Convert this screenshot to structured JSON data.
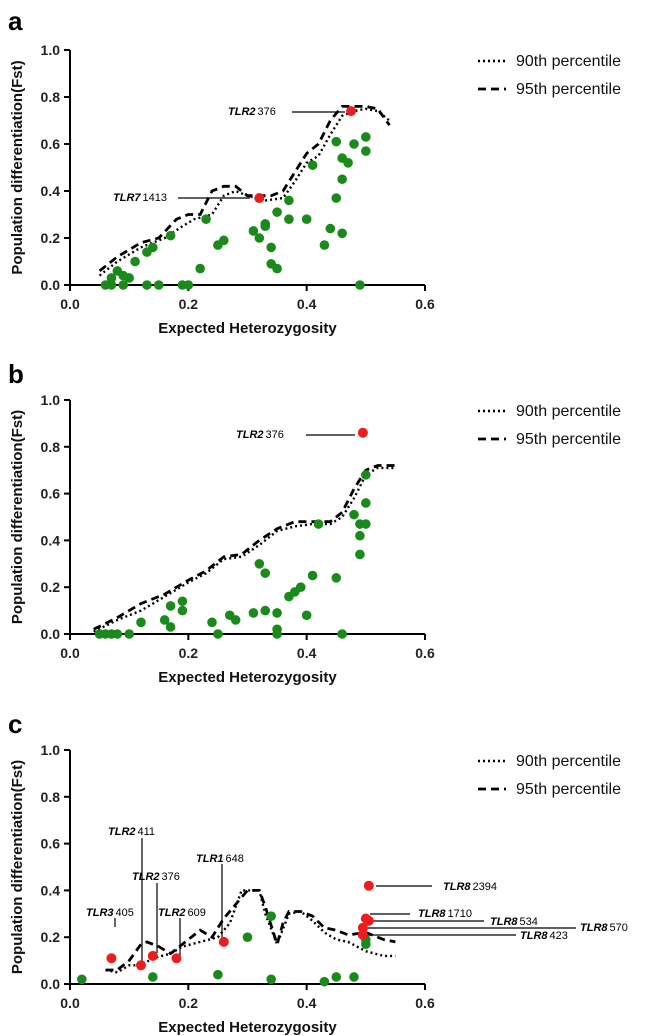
{
  "chart_data": [
    {
      "type": "scatter",
      "panel": "a",
      "xlabel": "Expected Heterozygosity",
      "ylabel": "Population differentiation(Fst)",
      "xlim": [
        0.0,
        0.6
      ],
      "ylim": [
        0.0,
        1.0
      ],
      "xticks": [
        "0.0",
        "0.2",
        "0.4",
        "0.6"
      ],
      "yticks": [
        "0.0",
        "0.2",
        "0.4",
        "0.6",
        "0.8",
        "1.0"
      ],
      "legend": {
        "position": "top-right",
        "entries": [
          {
            "label": "90th percentile",
            "style": "dotted"
          },
          {
            "label": "95th percentile",
            "style": "dashed"
          }
        ]
      },
      "colors": {
        "neutral": "#1a8a1a",
        "outlier": "#ee1c1c"
      },
      "lines": {
        "p90": [
          [
            0.05,
            0.04
          ],
          [
            0.08,
            0.1
          ],
          [
            0.12,
            0.16
          ],
          [
            0.16,
            0.2
          ],
          [
            0.19,
            0.25
          ],
          [
            0.21,
            0.28
          ],
          [
            0.24,
            0.3
          ],
          [
            0.26,
            0.38
          ],
          [
            0.28,
            0.4
          ],
          [
            0.3,
            0.38
          ],
          [
            0.33,
            0.36
          ],
          [
            0.36,
            0.37
          ],
          [
            0.38,
            0.44
          ],
          [
            0.4,
            0.52
          ],
          [
            0.42,
            0.55
          ],
          [
            0.44,
            0.64
          ],
          [
            0.46,
            0.72
          ],
          [
            0.48,
            0.74
          ],
          [
            0.5,
            0.75
          ],
          [
            0.52,
            0.74
          ],
          [
            0.54,
            0.7
          ]
        ],
        "p95": [
          [
            0.05,
            0.06
          ],
          [
            0.08,
            0.12
          ],
          [
            0.12,
            0.18
          ],
          [
            0.15,
            0.2
          ],
          [
            0.18,
            0.28
          ],
          [
            0.2,
            0.3
          ],
          [
            0.22,
            0.3
          ],
          [
            0.24,
            0.4
          ],
          [
            0.26,
            0.42
          ],
          [
            0.28,
            0.42
          ],
          [
            0.3,
            0.38
          ],
          [
            0.34,
            0.38
          ],
          [
            0.36,
            0.4
          ],
          [
            0.38,
            0.48
          ],
          [
            0.4,
            0.56
          ],
          [
            0.42,
            0.6
          ],
          [
            0.44,
            0.7
          ],
          [
            0.46,
            0.76
          ],
          [
            0.48,
            0.76
          ],
          [
            0.5,
            0.76
          ],
          [
            0.52,
            0.75
          ],
          [
            0.54,
            0.68
          ]
        ]
      },
      "neutral": [
        [
          0.06,
          0.0
        ],
        [
          0.07,
          0.03
        ],
        [
          0.07,
          0.0
        ],
        [
          0.08,
          0.06
        ],
        [
          0.09,
          0.0
        ],
        [
          0.09,
          0.04
        ],
        [
          0.1,
          0.03
        ],
        [
          0.11,
          0.1
        ],
        [
          0.13,
          0.14
        ],
        [
          0.13,
          0.0
        ],
        [
          0.14,
          0.16
        ],
        [
          0.15,
          0.0
        ],
        [
          0.17,
          0.21
        ],
        [
          0.19,
          0.0
        ],
        [
          0.2,
          0.0
        ],
        [
          0.22,
          0.07
        ],
        [
          0.23,
          0.28
        ],
        [
          0.25,
          0.17
        ],
        [
          0.26,
          0.19
        ],
        [
          0.31,
          0.23
        ],
        [
          0.32,
          0.2
        ],
        [
          0.33,
          0.26
        ],
        [
          0.33,
          0.25
        ],
        [
          0.34,
          0.16
        ],
        [
          0.34,
          0.09
        ],
        [
          0.35,
          0.07
        ],
        [
          0.35,
          0.31
        ],
        [
          0.37,
          0.28
        ],
        [
          0.37,
          0.36
        ],
        [
          0.4,
          0.28
        ],
        [
          0.41,
          0.51
        ],
        [
          0.43,
          0.17
        ],
        [
          0.44,
          0.24
        ],
        [
          0.45,
          0.37
        ],
        [
          0.45,
          0.61
        ],
        [
          0.46,
          0.45
        ],
        [
          0.46,
          0.54
        ],
        [
          0.46,
          0.22
        ],
        [
          0.47,
          0.52
        ],
        [
          0.48,
          0.6
        ],
        [
          0.49,
          0.0
        ],
        [
          0.5,
          0.63
        ],
        [
          0.5,
          0.57
        ]
      ],
      "outliers": [
        {
          "x": 0.32,
          "y": 0.37,
          "gene": "TLR7",
          "pos": "1413"
        },
        {
          "x": 0.475,
          "y": 0.74,
          "gene": "TLR2",
          "pos": "376"
        }
      ]
    },
    {
      "type": "scatter",
      "panel": "b",
      "xlabel": "Expected Heterozygosity",
      "ylabel": "Population differentiation(Fst)",
      "xlim": [
        0.0,
        0.6
      ],
      "ylim": [
        0.0,
        1.0
      ],
      "xticks": [
        "0.0",
        "0.2",
        "0.4",
        "0.6"
      ],
      "yticks": [
        "0.0",
        "0.2",
        "0.4",
        "0.6",
        "0.8",
        "1.0"
      ],
      "legend": {
        "position": "top-right",
        "entries": [
          {
            "label": "90th percentile",
            "style": "dotted"
          },
          {
            "label": "95th percentile",
            "style": "dashed"
          }
        ]
      },
      "colors": {
        "neutral": "#1a8a1a",
        "outlier": "#ee1c1c"
      },
      "lines": {
        "p90": [
          [
            0.04,
            0.01
          ],
          [
            0.08,
            0.06
          ],
          [
            0.12,
            0.1
          ],
          [
            0.16,
            0.16
          ],
          [
            0.2,
            0.22
          ],
          [
            0.23,
            0.26
          ],
          [
            0.26,
            0.32
          ],
          [
            0.29,
            0.33
          ],
          [
            0.32,
            0.38
          ],
          [
            0.35,
            0.44
          ],
          [
            0.38,
            0.46
          ],
          [
            0.41,
            0.47
          ],
          [
            0.44,
            0.47
          ],
          [
            0.46,
            0.5
          ],
          [
            0.48,
            0.58
          ],
          [
            0.5,
            0.68
          ],
          [
            0.52,
            0.71
          ],
          [
            0.55,
            0.71
          ]
        ],
        "p95": [
          [
            0.04,
            0.02
          ],
          [
            0.08,
            0.07
          ],
          [
            0.12,
            0.13
          ],
          [
            0.16,
            0.17
          ],
          [
            0.2,
            0.23
          ],
          [
            0.23,
            0.27
          ],
          [
            0.26,
            0.33
          ],
          [
            0.29,
            0.34
          ],
          [
            0.32,
            0.4
          ],
          [
            0.35,
            0.45
          ],
          [
            0.38,
            0.48
          ],
          [
            0.41,
            0.48
          ],
          [
            0.44,
            0.48
          ],
          [
            0.46,
            0.52
          ],
          [
            0.48,
            0.62
          ],
          [
            0.5,
            0.7
          ],
          [
            0.52,
            0.72
          ],
          [
            0.55,
            0.72
          ]
        ]
      },
      "neutral": [
        [
          0.05,
          0.0
        ],
        [
          0.06,
          0.0
        ],
        [
          0.07,
          0.0
        ],
        [
          0.08,
          0.0
        ],
        [
          0.1,
          0.0
        ],
        [
          0.12,
          0.05
        ],
        [
          0.16,
          0.06
        ],
        [
          0.17,
          0.12
        ],
        [
          0.17,
          0.03
        ],
        [
          0.19,
          0.1
        ],
        [
          0.19,
          0.14
        ],
        [
          0.24,
          0.05
        ],
        [
          0.25,
          0.0
        ],
        [
          0.27,
          0.08
        ],
        [
          0.28,
          0.06
        ],
        [
          0.31,
          0.09
        ],
        [
          0.32,
          0.3
        ],
        [
          0.33,
          0.26
        ],
        [
          0.33,
          0.1
        ],
        [
          0.35,
          0.02
        ],
        [
          0.35,
          0.0
        ],
        [
          0.35,
          0.09
        ],
        [
          0.37,
          0.16
        ],
        [
          0.38,
          0.18
        ],
        [
          0.39,
          0.2
        ],
        [
          0.4,
          0.08
        ],
        [
          0.41,
          0.25
        ],
        [
          0.42,
          0.47
        ],
        [
          0.45,
          0.24
        ],
        [
          0.46,
          0.0
        ],
        [
          0.48,
          0.51
        ],
        [
          0.49,
          0.47
        ],
        [
          0.49,
          0.34
        ],
        [
          0.49,
          0.42
        ],
        [
          0.5,
          0.47
        ],
        [
          0.5,
          0.56
        ],
        [
          0.5,
          0.68
        ]
      ],
      "outliers": [
        {
          "x": 0.495,
          "y": 0.86,
          "gene": "TLR2",
          "pos": "376"
        }
      ]
    },
    {
      "type": "scatter",
      "panel": "c",
      "xlabel": "Expected Heterozygosity",
      "ylabel": "Population differentiation(Fst)",
      "xlim": [
        0.0,
        0.6
      ],
      "ylim": [
        0.0,
        1.0
      ],
      "xticks": [
        "0.0",
        "0.2",
        "0.4",
        "0.6"
      ],
      "yticks": [
        "0.0",
        "0.2",
        "0.4",
        "0.6",
        "0.8",
        "1.0"
      ],
      "legend": {
        "position": "top-right",
        "entries": [
          {
            "label": "90th percentile",
            "style": "dotted"
          },
          {
            "label": "95th percentile",
            "style": "dashed"
          }
        ]
      },
      "colors": {
        "neutral": "#1a8a1a",
        "outlier": "#ee1c1c"
      },
      "lines": {
        "p90": [
          [
            0.06,
            0.06
          ],
          [
            0.08,
            0.05
          ],
          [
            0.1,
            0.08
          ],
          [
            0.12,
            0.08
          ],
          [
            0.14,
            0.11
          ],
          [
            0.17,
            0.13
          ],
          [
            0.19,
            0.16
          ],
          [
            0.22,
            0.18
          ],
          [
            0.25,
            0.2
          ],
          [
            0.27,
            0.26
          ],
          [
            0.29,
            0.4
          ],
          [
            0.32,
            0.4
          ],
          [
            0.33,
            0.3
          ],
          [
            0.35,
            0.17
          ],
          [
            0.37,
            0.3
          ],
          [
            0.39,
            0.31
          ],
          [
            0.41,
            0.27
          ],
          [
            0.43,
            0.22
          ],
          [
            0.45,
            0.19
          ],
          [
            0.47,
            0.18
          ],
          [
            0.5,
            0.14
          ],
          [
            0.53,
            0.12
          ],
          [
            0.55,
            0.12
          ]
        ],
        "p95": [
          [
            0.06,
            0.06
          ],
          [
            0.08,
            0.06
          ],
          [
            0.1,
            0.1
          ],
          [
            0.12,
            0.17
          ],
          [
            0.13,
            0.18
          ],
          [
            0.15,
            0.16
          ],
          [
            0.17,
            0.13
          ],
          [
            0.19,
            0.17
          ],
          [
            0.22,
            0.23
          ],
          [
            0.24,
            0.2
          ],
          [
            0.26,
            0.28
          ],
          [
            0.28,
            0.34
          ],
          [
            0.3,
            0.4
          ],
          [
            0.32,
            0.4
          ],
          [
            0.33,
            0.33
          ],
          [
            0.35,
            0.17
          ],
          [
            0.36,
            0.26
          ],
          [
            0.37,
            0.31
          ],
          [
            0.39,
            0.31
          ],
          [
            0.41,
            0.29
          ],
          [
            0.43,
            0.24
          ],
          [
            0.45,
            0.23
          ],
          [
            0.47,
            0.21
          ],
          [
            0.5,
            0.22
          ],
          [
            0.53,
            0.19
          ],
          [
            0.55,
            0.18
          ]
        ]
      },
      "neutral": [
        [
          0.02,
          0.02
        ],
        [
          0.14,
          0.03
        ],
        [
          0.25,
          0.04
        ],
        [
          0.3,
          0.2
        ],
        [
          0.34,
          0.29
        ],
        [
          0.34,
          0.02
        ],
        [
          0.43,
          0.01
        ],
        [
          0.45,
          0.03
        ],
        [
          0.48,
          0.03
        ],
        [
          0.5,
          0.17
        ],
        [
          0.5,
          0.19
        ]
      ],
      "outliers": [
        {
          "x": 0.07,
          "y": 0.11,
          "gene": "TLR3",
          "pos": "405"
        },
        {
          "x": 0.12,
          "y": 0.08,
          "gene": "TLR2",
          "pos": "411"
        },
        {
          "x": 0.14,
          "y": 0.12,
          "gene": "TLR2",
          "pos": "376"
        },
        {
          "x": 0.18,
          "y": 0.11,
          "gene": "TLR2",
          "pos": "609"
        },
        {
          "x": 0.26,
          "y": 0.18,
          "gene": "TLR1",
          "pos": "648"
        },
        {
          "x": 0.505,
          "y": 0.42,
          "gene": "TLR8",
          "pos": "2394"
        },
        {
          "x": 0.5,
          "y": 0.28,
          "gene": "TLR8",
          "pos": "1710"
        },
        {
          "x": 0.505,
          "y": 0.27,
          "gene": "TLR8",
          "pos": "534"
        },
        {
          "x": 0.495,
          "y": 0.24,
          "gene": "TLR8",
          "pos": "570"
        },
        {
          "x": 0.495,
          "y": 0.21,
          "gene": "TLR8",
          "pos": "423"
        }
      ]
    }
  ]
}
